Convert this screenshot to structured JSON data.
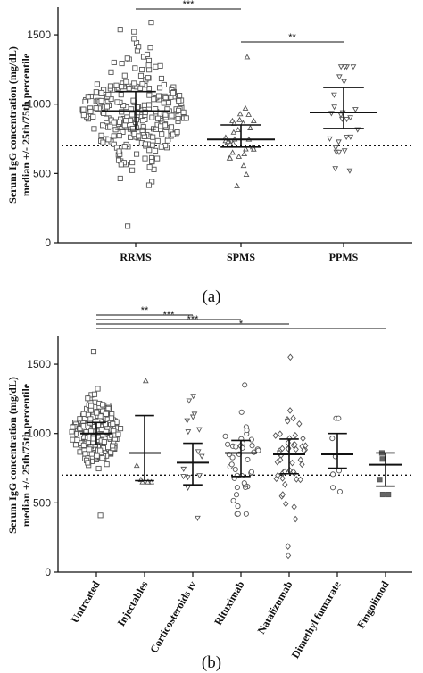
{
  "chart_data": [
    {
      "panel_label": "(a)",
      "type": "scatter",
      "ylabel_line1": "Serum IgG concentration (mg/dL)",
      "ylabel_line2": "median +/- 25th/75th percentile",
      "ylim": [
        0,
        1700
      ],
      "yticks": [
        "0",
        "500",
        "1000",
        "1500"
      ],
      "reference_line": 700,
      "groups": [
        {
          "name": "RRMS",
          "marker": "square",
          "n": 270,
          "median": 950,
          "q1": 820,
          "q3": 1090,
          "min": 120,
          "max": 1590
        },
        {
          "name": "SPMS",
          "marker": "triangle-up",
          "n": 32,
          "median": 745,
          "q1": 690,
          "q3": 850,
          "min": 410,
          "max": 1340
        },
        {
          "name": "PPMS",
          "marker": "triangle-down",
          "n": 26,
          "median": 940,
          "q1": 825,
          "q3": 1120,
          "min": 520,
          "max": 1270
        }
      ],
      "significance": [
        {
          "from": "RRMS",
          "to": "SPMS",
          "label": "***"
        },
        {
          "from": "SPMS",
          "to": "PPMS",
          "label": "**"
        }
      ]
    },
    {
      "panel_label": "(b)",
      "type": "scatter",
      "ylabel_line1": "Serum IgG concentration (mg/dL)",
      "ylabel_line2": "median +/- 25th/75th percentile",
      "ylim": [
        0,
        1700
      ],
      "yticks": [
        "0",
        "500",
        "1000",
        "1500"
      ],
      "reference_line": 700,
      "groups": [
        {
          "name": "Untreated",
          "marker": "square",
          "n": 210,
          "median": 1000,
          "q1": 920,
          "q3": 1080,
          "min": 410,
          "max": 1590
        },
        {
          "name": "Injectables",
          "marker": "triangle-up",
          "n": 7,
          "median": 860,
          "q1": 660,
          "q3": 1130,
          "min": 650,
          "max": 1380
        },
        {
          "name": "Corticosteroids iv",
          "marker": "triangle-down",
          "n": 15,
          "median": 790,
          "q1": 630,
          "q3": 930,
          "min": 390,
          "max": 1270
        },
        {
          "name": "Rituximab",
          "marker": "circle",
          "n": 42,
          "median": 860,
          "q1": 690,
          "q3": 950,
          "min": 420,
          "max": 1350
        },
        {
          "name": "Natalizumab",
          "marker": "diamond",
          "n": 48,
          "median": 850,
          "q1": 710,
          "q3": 960,
          "min": 120,
          "max": 1550
        },
        {
          "name": "Dimethyl fumarate",
          "marker": "circle",
          "n": 8,
          "median": 850,
          "q1": 750,
          "q3": 1000,
          "min": 580,
          "max": 1110
        },
        {
          "name": "Fingolimod",
          "marker": "filled-square",
          "n": 5,
          "median": 775,
          "q1": 620,
          "q3": 860,
          "min": 560,
          "max": 860
        }
      ],
      "significance": [
        {
          "from": "Untreated",
          "to": "Corticosteroids iv",
          "label": "**"
        },
        {
          "from": "Untreated",
          "to": "Rituximab",
          "label": "***"
        },
        {
          "from": "Untreated",
          "to": "Natalizumab",
          "label": "***"
        },
        {
          "from": "Untreated",
          "to": "Fingolimod",
          "label": "*"
        }
      ]
    }
  ]
}
